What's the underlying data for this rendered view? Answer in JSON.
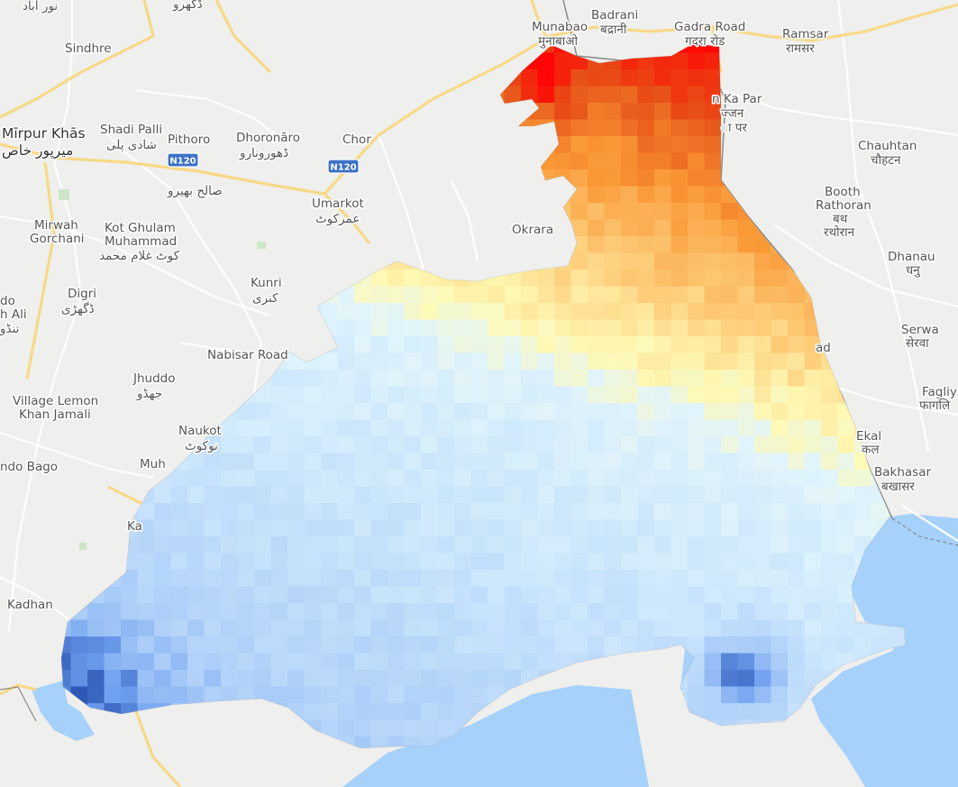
{
  "map": {
    "colors": {
      "land": "#efefed",
      "water": "#a5d1fa",
      "road_major": "#f7d987",
      "road_minor": "#ffffff",
      "border": "#8a8a8a",
      "shield": "#3b71c7",
      "heat_hot": "#ff0000",
      "heat_cold": "#1c3f9e"
    },
    "labels": [
      {
        "id": "noor-abad",
        "lines": [
          "نور آباد"
        ]
      },
      {
        "id": "dhoro",
        "lines": [
          "ڈگھرو"
        ]
      },
      {
        "id": "sindhre",
        "lines": [
          "Sindhre"
        ]
      },
      {
        "id": "munabao",
        "lines": [
          "Munabao",
          "मुनाबाओ"
        ]
      },
      {
        "id": "badrani",
        "lines": [
          "Badrani",
          "बद्रानी"
        ]
      },
      {
        "id": "gadra-road",
        "lines": [
          "Gadra Road",
          "गदरा रोड"
        ]
      },
      {
        "id": "ramsar",
        "lines": [
          "Ramsar",
          "रामसर"
        ]
      },
      {
        "id": "mirpur-khas",
        "lines": [
          "Mīrpur Khās",
          "میرپور خاص"
        ]
      },
      {
        "id": "shadi-palli",
        "lines": [
          "Shadi Palli",
          "شادی پلی"
        ]
      },
      {
        "id": "pithoro",
        "lines": [
          "Pithoro"
        ]
      },
      {
        "id": "dhoronaro",
        "lines": [
          "Dhoronāro",
          "ڈھورونارو"
        ]
      },
      {
        "id": "chor",
        "lines": [
          "Chor"
        ]
      },
      {
        "id": "ka-par",
        "lines": [
          "n Ka Par",
          "ज्जन",
          "ा पर"
        ]
      },
      {
        "id": "chauhtan",
        "lines": [
          "Chauhtan",
          "चौहटन"
        ]
      },
      {
        "id": "salih-bhahro",
        "lines": [
          "صالح بھیرو"
        ]
      },
      {
        "id": "umarkot",
        "lines": [
          "Umarkot",
          "عمرکوٹ"
        ]
      },
      {
        "id": "booth-rathoran",
        "lines": [
          "Booth",
          "Rathoran",
          "बथ",
          "रथोरान"
        ]
      },
      {
        "id": "okrara",
        "lines": [
          "Okrara"
        ]
      },
      {
        "id": "mirwah-gorchani",
        "lines": [
          "Mirwah",
          "Gorchani"
        ]
      },
      {
        "id": "kot-ghulam-muhammad",
        "lines": [
          "Kot Ghulam",
          "Muhammad",
          "کوٹ غلام محمد"
        ]
      },
      {
        "id": "dhanau",
        "lines": [
          "Dhanau",
          "धनु"
        ]
      },
      {
        "id": "kunri",
        "lines": [
          "Kunri",
          "کنری"
        ]
      },
      {
        "id": "digri",
        "lines": [
          "Digri",
          "ڈگھڑی"
        ]
      },
      {
        "id": "do-ali",
        "lines": [
          "do",
          "h Ali",
          "تنڈو"
        ]
      },
      {
        "id": "serwa",
        "lines": [
          "Serwa",
          "सेरवा"
        ]
      },
      {
        "id": "nabisar-road",
        "lines": [
          "Nabisar Road"
        ]
      },
      {
        "id": "ad",
        "lines": [
          "ad"
        ]
      },
      {
        "id": "jhuddo",
        "lines": [
          "Jhuddo",
          "جھڈو"
        ]
      },
      {
        "id": "fagliya",
        "lines": [
          "Fagliy",
          "फागलि"
        ]
      },
      {
        "id": "village-lemon",
        "lines": [
          "Village Lemon",
          "Khan Jamali"
        ]
      },
      {
        "id": "naukot",
        "lines": [
          "Naukot",
          "نوکوٹ"
        ]
      },
      {
        "id": "ekal",
        "lines": [
          "Ekal",
          "कल"
        ]
      },
      {
        "id": "ndo-bago",
        "lines": [
          "ndo Bago"
        ]
      },
      {
        "id": "muh",
        "lines": [
          "Muh"
        ]
      },
      {
        "id": "bakhasar",
        "lines": [
          "Bakhasar",
          "बखासर"
        ]
      },
      {
        "id": "ka",
        "lines": [
          "Ka"
        ]
      },
      {
        "id": "kadhan",
        "lines": [
          "Kadhan"
        ]
      }
    ],
    "shields": [
      {
        "id": "n120-west",
        "text": "N120"
      },
      {
        "id": "n120-east",
        "text": "N120"
      }
    ]
  }
}
